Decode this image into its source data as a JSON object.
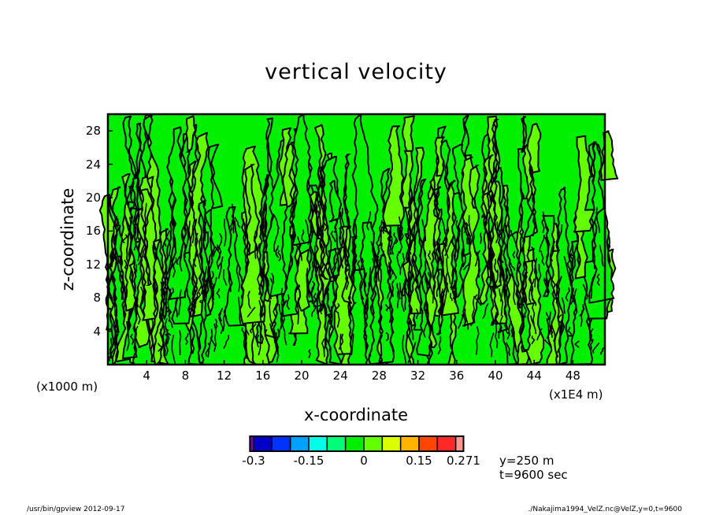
{
  "chart_data": {
    "type": "heatmap",
    "title": "vertical velocity",
    "xlabel": "x-coordinate",
    "ylabel": "z-coordinate",
    "x_unit_left": "(x1000 m)",
    "x_unit_right": "(x1E4 m)",
    "xlim": [
      0,
      51.3
    ],
    "ylim": [
      0,
      30
    ],
    "xticks": [
      "4",
      "8",
      "12",
      "16",
      "20",
      "24",
      "28",
      "32",
      "36",
      "40",
      "44",
      "48"
    ],
    "xtick_values": [
      4,
      8,
      12,
      16,
      20,
      24,
      28,
      32,
      36,
      40,
      44,
      48
    ],
    "yticks": [
      "4",
      "8",
      "12",
      "16",
      "20",
      "24",
      "28"
    ],
    "ytick_values": [
      4,
      8,
      12,
      16,
      20,
      24,
      28
    ],
    "colorbar": {
      "levels": [
        -0.31,
        -0.3,
        -0.25,
        -0.2,
        -0.15,
        -0.1,
        -0.05,
        0,
        0.05,
        0.1,
        0.15,
        0.2,
        0.25,
        0.271
      ],
      "colors": [
        "#7a00b4",
        "#0000c8",
        "#0032ff",
        "#00a0ff",
        "#00ffe6",
        "#00ff78",
        "#00f000",
        "#64ff00",
        "#dcff00",
        "#ffb400",
        "#ff4600",
        "#ff2828",
        "#ff9696"
      ],
      "tick_labels": [
        "-0.3",
        "-0.15",
        "0",
        "0.15",
        "0.271"
      ],
      "tick_values": [
        -0.3,
        -0.15,
        0,
        0.15,
        0.271
      ]
    },
    "annotations": [
      "y=250 m",
      "t=9600 sec"
    ],
    "dominant_colors": [
      "#00f000",
      "#64ff00"
    ]
  },
  "footer": {
    "left": "/usr/bin/gpview   2012-09-17",
    "right": "./Nakajima1994_VelZ.nc@VelZ,y=0,t=9600"
  }
}
